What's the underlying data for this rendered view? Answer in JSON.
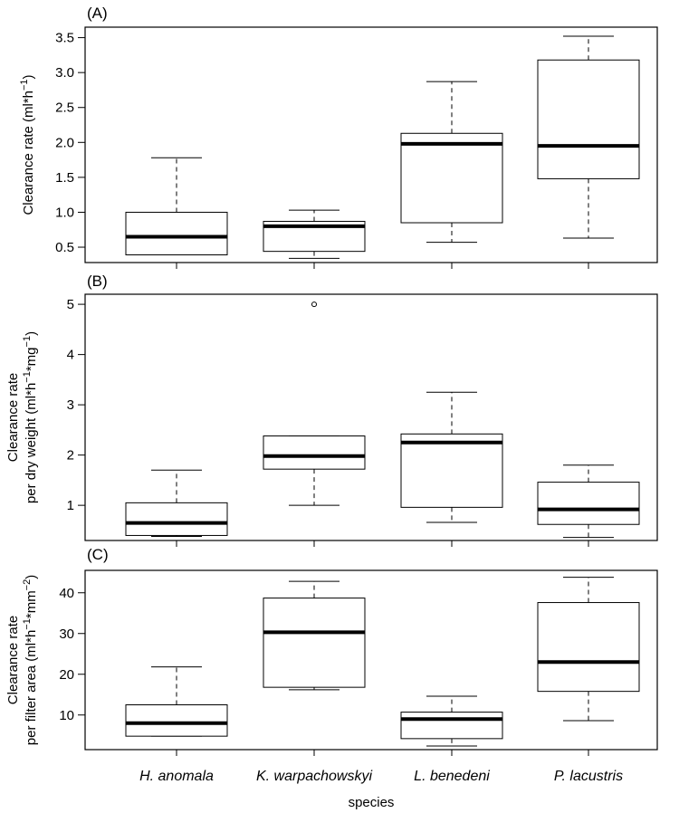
{
  "chart_data": [
    {
      "type": "boxplot",
      "panel_label": "(A)",
      "ylabel_lines": [
        "Clearance rate (ml*h",
        "−1",
        ")"
      ],
      "ylim": [
        0.28,
        3.65
      ],
      "yticks": [
        0.5,
        1.0,
        1.5,
        2.0,
        2.5,
        3.0,
        3.5
      ],
      "ytick_labels": [
        "0.5",
        "1.0",
        "1.5",
        "2.0",
        "2.5",
        "3.0",
        "3.5"
      ],
      "boxes": [
        {
          "whisker_low": 0.39,
          "q1": 0.39,
          "median": 0.65,
          "q3": 1.0,
          "whisker_high": 1.78,
          "outliers": []
        },
        {
          "whisker_low": 0.34,
          "q1": 0.44,
          "median": 0.8,
          "q3": 0.87,
          "whisker_high": 1.03,
          "outliers": []
        },
        {
          "whisker_low": 0.57,
          "q1": 0.85,
          "median": 1.98,
          "q3": 2.13,
          "whisker_high": 2.87,
          "outliers": []
        },
        {
          "whisker_low": 0.63,
          "q1": 1.48,
          "median": 1.95,
          "q3": 3.18,
          "whisker_high": 3.52,
          "outliers": []
        }
      ]
    },
    {
      "type": "boxplot",
      "panel_label": "(B)",
      "ylabel_lines": [
        "Clearance rate",
        "per dry weight (ml*h",
        "−1",
        "*mg",
        "−1",
        ")"
      ],
      "ylim": [
        0.3,
        5.2
      ],
      "yticks": [
        1,
        2,
        3,
        4,
        5
      ],
      "ytick_labels": [
        "1",
        "2",
        "3",
        "4",
        "5"
      ],
      "boxes": [
        {
          "whisker_low": 0.38,
          "q1": 0.4,
          "median": 0.65,
          "q3": 1.05,
          "whisker_high": 1.7,
          "outliers": []
        },
        {
          "whisker_low": 1.0,
          "q1": 1.72,
          "median": 1.98,
          "q3": 2.38,
          "whisker_high": 2.38,
          "outliers": [
            5.0
          ]
        },
        {
          "whisker_low": 0.66,
          "q1": 0.96,
          "median": 2.25,
          "q3": 2.42,
          "whisker_high": 3.25,
          "outliers": []
        },
        {
          "whisker_low": 0.36,
          "q1": 0.62,
          "median": 0.92,
          "q3": 1.46,
          "whisker_high": 1.8,
          "outliers": []
        }
      ]
    },
    {
      "type": "boxplot",
      "panel_label": "(C)",
      "ylabel_lines": [
        "Clearance rate",
        "per filter area (ml*h",
        "−1",
        "*mm",
        "−2",
        ")"
      ],
      "ylim": [
        1.5,
        45.5
      ],
      "yticks": [
        10,
        20,
        30,
        40
      ],
      "ytick_labels": [
        "10",
        "20",
        "30",
        "40"
      ],
      "boxes": [
        {
          "whisker_low": 4.8,
          "q1": 4.8,
          "median": 8.0,
          "q3": 12.5,
          "whisker_high": 21.8,
          "outliers": []
        },
        {
          "whisker_low": 16.2,
          "q1": 16.8,
          "median": 30.3,
          "q3": 38.7,
          "whisker_high": 42.8,
          "outliers": []
        },
        {
          "whisker_low": 2.4,
          "q1": 4.2,
          "median": 9.0,
          "q3": 10.7,
          "whisker_high": 14.6,
          "outliers": []
        },
        {
          "whisker_low": 8.6,
          "q1": 15.8,
          "median": 23.0,
          "q3": 37.6,
          "whisker_high": 43.8,
          "outliers": []
        }
      ]
    }
  ],
  "categories": [
    "H. anomala",
    "K. warpachowskyi",
    "L. benedeni",
    "P. lacustris"
  ],
  "xlabel": "species"
}
